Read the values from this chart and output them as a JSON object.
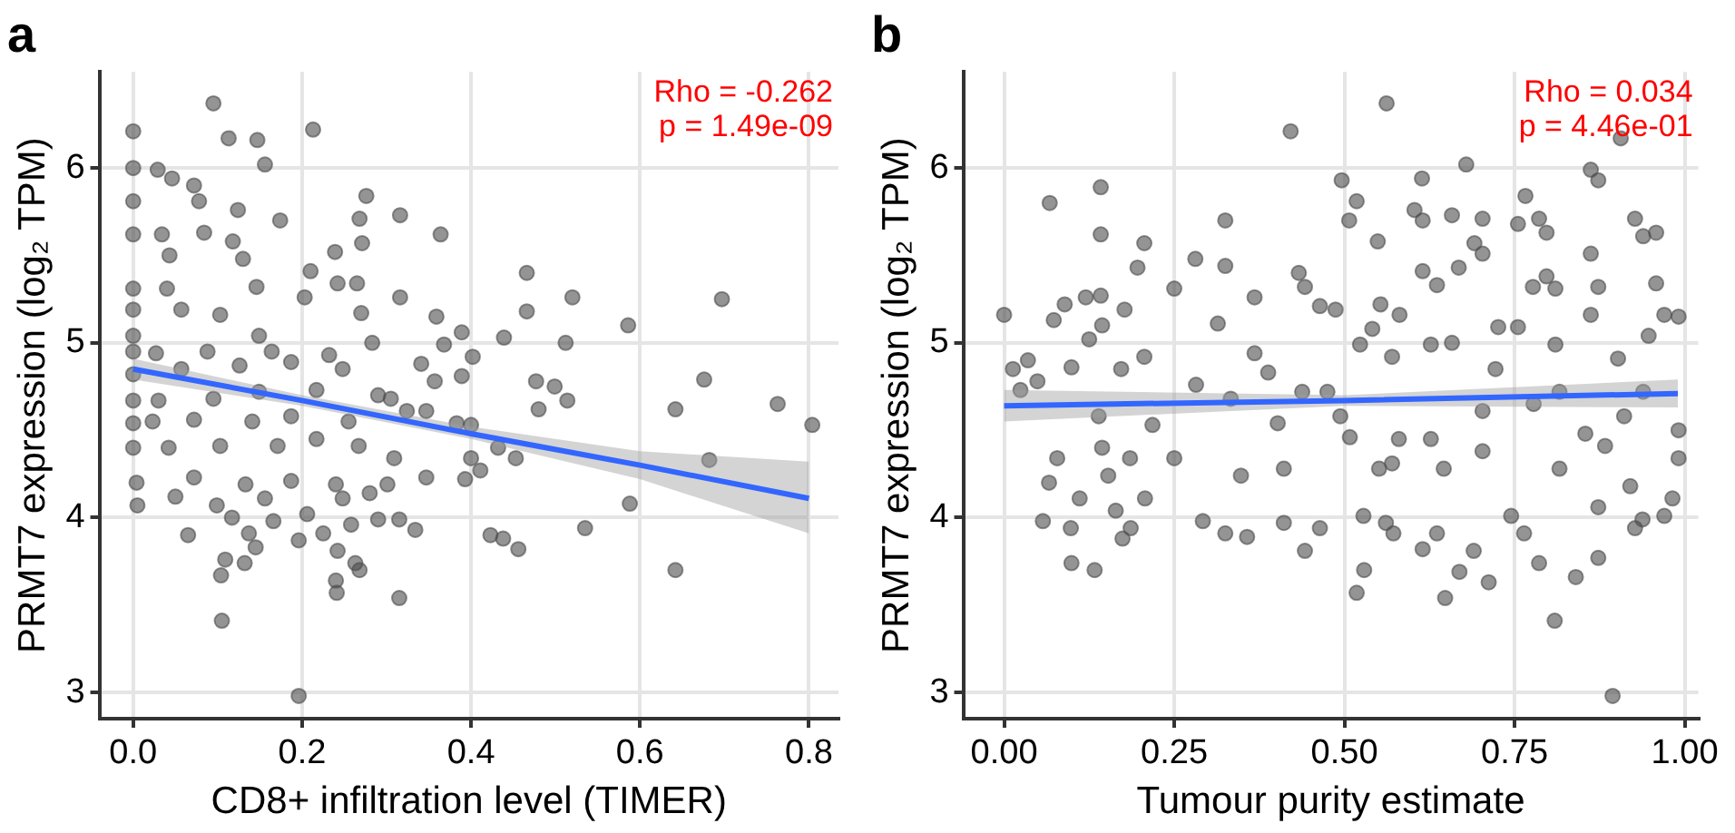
{
  "chart_data": [
    {
      "type": "scatter",
      "title": "a",
      "xlabel": "CD8+ infiltration level (TIMER)",
      "ylabel": "PRMT7 expression (log₂ TPM)",
      "annotations": [
        "Rho = -0.262",
        "p = 1.49e-09"
      ],
      "xlim": [
        -0.04,
        0.835
      ],
      "xticks": [
        {
          "value": 0,
          "label": "0.0"
        },
        {
          "value": 0.2,
          "label": "0.2"
        },
        {
          "value": 0.4,
          "label": "0.4"
        },
        {
          "value": 0.6,
          "label": "0.6"
        },
        {
          "value": 0.8,
          "label": "0.8"
        }
      ],
      "ylim": [
        2.85,
        6.55
      ],
      "yticks": [
        3,
        4,
        5,
        6
      ],
      "grid": true,
      "legend": false,
      "series": [
        {
          "marker": "circle",
          "color": "#4d4d4d",
          "x": [
            0.095,
            0,
            0.113,
            0.147,
            0.213,
            0.156,
            0,
            0.029,
            0.046,
            0.072,
            0.078,
            0,
            0.124,
            0.276,
            0.174,
            0.268,
            0.316,
            0.364,
            0,
            0.034,
            0.084,
            0.118,
            0.271,
            0.043,
            0.239,
            0.13,
            0.21,
            0.466,
            0,
            0.04,
            0.146,
            0.242,
            0.265,
            0.316,
            0.52,
            0.697,
            0.203,
            0,
            0.057,
            0.103,
            0.27,
            0.359,
            0.466,
            0.586,
            0,
            0.149,
            0.389,
            0.439,
            0.512,
            0,
            0.027,
            0.088,
            0.164,
            0.232,
            0.283,
            0.368,
            0.402,
            0.341,
            0,
            0.057,
            0.126,
            0.187,
            0.248,
            0.477,
            0.389,
            0.357,
            0.499,
            0.676,
            0,
            0.03,
            0.095,
            0.149,
            0.217,
            0.29,
            0.305,
            0.514,
            0.48,
            0.642,
            0.763,
            0.804,
            0,
            0.023,
            0.072,
            0.141,
            0.187,
            0.255,
            0.324,
            0.347,
            0.383,
            0.4,
            0,
            0.042,
            0.103,
            0.171,
            0.217,
            0.267,
            0.309,
            0.4,
            0.432,
            0.453,
            0.682,
            0.004,
            0.072,
            0.133,
            0.187,
            0.24,
            0.301,
            0.347,
            0.393,
            0.411,
            0.005,
            0.05,
            0.099,
            0.156,
            0.206,
            0.248,
            0.28,
            0.588,
            0.065,
            0.117,
            0.137,
            0.166,
            0.196,
            0.225,
            0.258,
            0.29,
            0.315,
            0.334,
            0.423,
            0.438,
            0.456,
            0.535,
            0.109,
            0.145,
            0.104,
            0.132,
            0.242,
            0.24,
            0.241,
            0.263,
            0.268,
            0.315,
            0.642,
            0.105,
            0.196
          ],
          "values": [
            6.37,
            6.21,
            6.17,
            6.16,
            6.22,
            6.02,
            6.0,
            5.99,
            5.94,
            5.9,
            5.81,
            5.81,
            5.76,
            5.84,
            5.7,
            5.71,
            5.73,
            5.62,
            5.62,
            5.62,
            5.63,
            5.58,
            5.57,
            5.5,
            5.52,
            5.48,
            5.41,
            5.4,
            5.31,
            5.31,
            5.32,
            5.34,
            5.34,
            5.26,
            5.26,
            5.25,
            5.26,
            5.19,
            5.19,
            5.16,
            5.17,
            5.15,
            5.18,
            5.1,
            5.04,
            5.04,
            5.06,
            5.03,
            5.0,
            4.95,
            4.94,
            4.95,
            4.95,
            4.93,
            5.0,
            4.99,
            4.92,
            4.88,
            4.82,
            4.85,
            4.87,
            4.89,
            4.85,
            4.78,
            4.81,
            4.78,
            4.75,
            4.79,
            4.67,
            4.67,
            4.68,
            4.72,
            4.73,
            4.7,
            4.68,
            4.67,
            4.62,
            4.62,
            4.65,
            4.53,
            4.54,
            4.55,
            4.56,
            4.55,
            4.58,
            4.55,
            4.61,
            4.61,
            4.54,
            4.53,
            4.4,
            4.4,
            4.41,
            4.41,
            4.45,
            4.41,
            4.34,
            4.34,
            4.4,
            4.34,
            4.33,
            4.2,
            4.23,
            4.19,
            4.21,
            4.19,
            4.19,
            4.23,
            4.22,
            4.27,
            4.07,
            4.12,
            4.07,
            4.11,
            4.02,
            4.11,
            4.14,
            4.08,
            3.9,
            4.0,
            3.91,
            3.98,
            3.87,
            3.91,
            3.96,
            3.99,
            3.99,
            3.93,
            3.9,
            3.88,
            3.82,
            3.94,
            3.76,
            3.83,
            3.67,
            3.74,
            3.81,
            3.64,
            3.57,
            3.74,
            3.7,
            3.54,
            3.7,
            3.41,
            2.98
          ]
        },
        {
          "type": "line",
          "marker": "none",
          "color": "#3366ff",
          "x": [
            0,
            0.2,
            0.4,
            0.6,
            0.8
          ],
          "values": [
            4.85,
            4.67,
            4.48,
            4.3,
            4.11
          ],
          "lower": [
            4.79,
            4.64,
            4.45,
            4.22,
            3.91
          ],
          "upper": [
            4.91,
            4.7,
            4.52,
            4.38,
            4.32
          ]
        }
      ]
    },
    {
      "type": "scatter",
      "title": "b",
      "xlabel": "Tumour purity estimate",
      "ylabel": "PRMT7 expression (log₂ TPM)",
      "annotations": [
        "Rho = 0.034",
        "p = 4.46e-01"
      ],
      "xlim": [
        -0.06,
        1.02
      ],
      "xticks": [
        {
          "value": 0,
          "label": "0.00"
        },
        {
          "value": 0.25,
          "label": "0.25"
        },
        {
          "value": 0.5,
          "label": "0.50"
        },
        {
          "value": 0.75,
          "label": "0.75"
        },
        {
          "value": 1,
          "label": "1.00"
        }
      ],
      "ylim": [
        2.85,
        6.55
      ],
      "yticks": [
        3,
        4,
        5,
        6
      ],
      "grid": true,
      "legend": false,
      "series": [
        {
          "marker": "circle",
          "color": "#4d4d4d",
          "x": [
            0.0,
            0.013,
            0.035,
            0.024,
            0.049,
            0.067,
            0.057,
            0.066,
            0.078,
            0.073,
            0.089,
            0.099,
            0.098,
            0.099,
            0.111,
            0.12,
            0.125,
            0.133,
            0.142,
            0.142,
            0.142,
            0.144,
            0.139,
            0.144,
            0.153,
            0.164,
            0.174,
            0.172,
            0.177,
            0.186,
            0.185,
            0.196,
            0.206,
            0.206,
            0.207,
            0.218,
            0.25,
            0.25,
            0.281,
            0.282,
            0.292,
            0.314,
            0.325,
            0.325,
            0.325,
            0.333,
            0.357,
            0.348,
            0.368,
            0.368,
            0.388,
            0.402,
            0.421,
            0.433,
            0.442,
            0.411,
            0.411,
            0.442,
            0.464,
            0.464,
            0.487,
            0.496,
            0.507,
            0.518,
            0.508,
            0.518,
            0.529,
            0.528,
            0.523,
            0.541,
            0.549,
            0.553,
            0.562,
            0.561,
            0.572,
            0.57,
            0.57,
            0.581,
            0.603,
            0.614,
            0.615,
            0.615,
            0.615,
            0.627,
            0.627,
            0.636,
            0.636,
            0.648,
            0.658,
            0.658,
            0.668,
            0.669,
            0.679,
            0.691,
            0.703,
            0.703,
            0.69,
            0.703,
            0.712,
            0.722,
            0.726,
            0.755,
            0.766,
            0.786,
            0.797,
            0.777,
            0.797,
            0.81,
            0.755,
            0.745,
            0.764,
            0.786,
            0.809,
            0.81,
            0.816,
            0.84,
            0.862,
            0.873,
            0.862,
            0.873,
            0.862,
            0.873,
            0.873,
            0.894,
            0.906,
            0.927,
            0.939,
            0.958,
            0.958,
            0.947,
            0.97,
            0.991,
            0.927,
            0.938,
            0.97,
            0.982,
            0.991,
            0.991,
            0.92,
            0.854,
            0.883,
            0.911,
            0.939,
            0.778,
            0.816,
            0.703,
            0.58,
            0.475,
            0.438,
            0.494,
            0.551,
            0.646,
            0.902
          ],
          "values": [
            5.16,
            4.85,
            4.9,
            4.73,
            4.78,
            5.8,
            3.98,
            4.2,
            4.34,
            5.13,
            5.22,
            4.86,
            3.94,
            3.74,
            4.11,
            5.26,
            5.02,
            3.7,
            5.89,
            5.62,
            5.27,
            5.1,
            4.58,
            4.4,
            4.24,
            4.04,
            3.88,
            4.85,
            5.19,
            3.94,
            4.34,
            5.43,
            5.57,
            4.92,
            4.11,
            4.53,
            5.31,
            4.34,
            5.48,
            4.76,
            3.98,
            5.11,
            5.7,
            5.44,
            3.91,
            4.68,
            3.89,
            4.24,
            5.26,
            4.94,
            4.83,
            4.54,
            6.21,
            5.4,
            5.32,
            4.28,
            3.97,
            3.81,
            5.21,
            3.94,
            5.19,
            5.93,
            5.7,
            5.81,
            4.46,
            3.57,
            3.7,
            4.01,
            4.99,
            5.08,
            5.58,
            5.22,
            6.37,
            3.97,
            3.91,
            4.92,
            4.31,
            5.16,
            5.76,
            5.94,
            5.7,
            5.41,
            3.82,
            4.99,
            4.45,
            5.33,
            3.91,
            3.54,
            5.73,
            5.0,
            5.43,
            3.69,
            6.02,
            5.57,
            5.51,
            5.71,
            3.81,
            4.61,
            3.63,
            4.85,
            5.09,
            5.68,
            5.84,
            5.71,
            5.63,
            5.32,
            5.38,
            5.31,
            5.09,
            4.01,
            3.91,
            3.74,
            3.41,
            4.99,
            4.28,
            3.66,
            5.99,
            5.93,
            5.51,
            5.32,
            5.16,
            3.77,
            4.06,
            2.98,
            6.17,
            5.71,
            5.61,
            5.63,
            5.34,
            5.04,
            5.16,
            5.15,
            3.94,
            3.99,
            4.01,
            4.11,
            4.5,
            4.34,
            4.18,
            4.48,
            4.41,
            4.58,
            4.72,
            4.65,
            4.72,
            4.38,
            4.45,
            4.72,
            4.72,
            4.58,
            4.28,
            4.28,
            4.91
          ]
        },
        {
          "type": "line",
          "marker": "none",
          "color": "#3366ff",
          "x": [
            0,
            0.5,
            0.99
          ],
          "values": [
            4.64,
            4.67,
            4.71
          ],
          "lower": [
            4.55,
            4.64,
            4.63
          ],
          "upper": [
            4.73,
            4.7,
            4.79
          ]
        }
      ]
    }
  ]
}
